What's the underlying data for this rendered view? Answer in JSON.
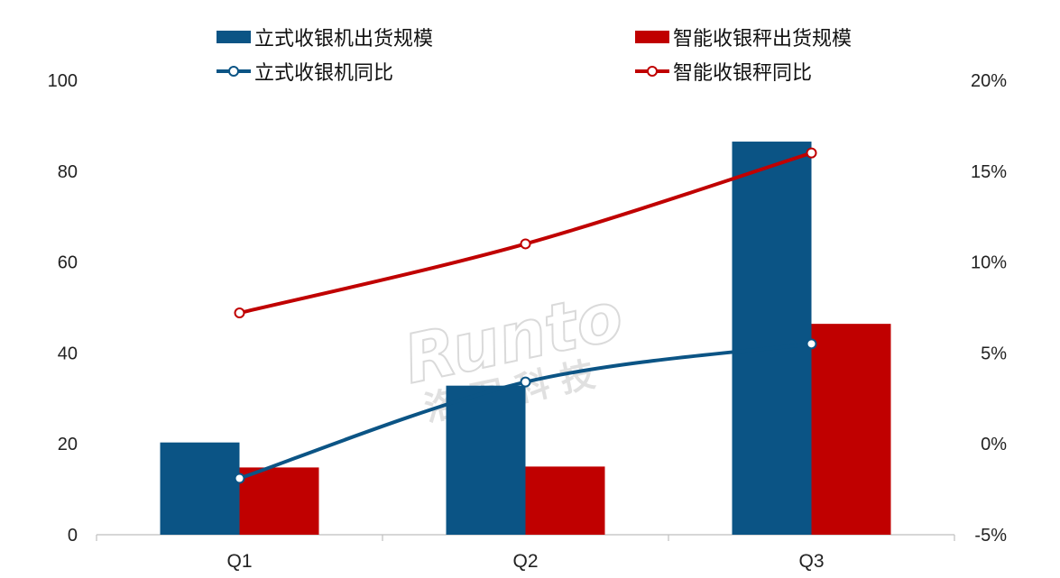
{
  "chart_data": {
    "type": "bar",
    "categories": [
      "Q1",
      "Q2",
      "Q3"
    ],
    "series": [
      {
        "name": "立式收银机出货规模",
        "kind": "bar",
        "axis": "left",
        "color": "#0b5485",
        "values": [
          20.3,
          32.8,
          86.5
        ]
      },
      {
        "name": "智能收银秤出货规模",
        "kind": "bar",
        "axis": "left",
        "color": "#c00000",
        "values": [
          14.8,
          15.0,
          46.4
        ]
      },
      {
        "name": "立式收银机同比",
        "kind": "line",
        "axis": "right",
        "color": "#0b5485",
        "values": [
          -1.9,
          3.4,
          5.5
        ]
      },
      {
        "name": "智能收银秤同比",
        "kind": "line",
        "axis": "right",
        "color": "#c00000",
        "values": [
          7.2,
          11.0,
          16.0
        ]
      }
    ],
    "y_left": {
      "min": 0,
      "max": 100,
      "ticks": [
        "0",
        "20",
        "40",
        "60",
        "80",
        "100"
      ]
    },
    "y_right": {
      "min": -5,
      "max": 20,
      "ticks": [
        "-5%",
        "0%",
        "5%",
        "10%",
        "15%",
        "20%"
      ]
    },
    "grid": false,
    "legend_position": "top"
  },
  "watermark": {
    "main": "Runto",
    "sub": "洛 图 科 技"
  }
}
